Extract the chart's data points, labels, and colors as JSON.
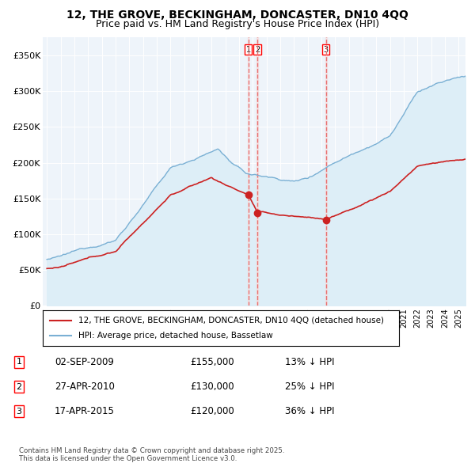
{
  "title": "12, THE GROVE, BECKINGHAM, DONCASTER, DN10 4QQ",
  "subtitle": "Price paid vs. HM Land Registry's House Price Index (HPI)",
  "title_fontsize": 10,
  "subtitle_fontsize": 9,
  "ylabel_ticks": [
    "£0",
    "£50K",
    "£100K",
    "£150K",
    "£200K",
    "£250K",
    "£300K",
    "£350K"
  ],
  "ytick_values": [
    0,
    50000,
    100000,
    150000,
    200000,
    250000,
    300000,
    350000
  ],
  "ylim": [
    0,
    375000
  ],
  "xlim_start": 1994.7,
  "xlim_end": 2025.5,
  "hpi_color": "#7ab0d4",
  "hpi_fill_color": "#ddeef7",
  "price_color": "#cc2222",
  "vline_color": "#e87070",
  "vline_fill_color": "#f5dddd",
  "legend_labels": [
    "12, THE GROVE, BECKINGHAM, DONCASTER, DN10 4QQ (detached house)",
    "HPI: Average price, detached house, Bassetlaw"
  ],
  "transactions": [
    {
      "num": 1,
      "date": "02-SEP-2009",
      "price": 155000,
      "price_str": "£155,000",
      "pct": "13%",
      "dir": "↓",
      "year_x": 2009.67,
      "marker_y": 155000
    },
    {
      "num": 2,
      "date": "27-APR-2010",
      "price": 130000,
      "price_str": "£130,000",
      "pct": "25%",
      "dir": "↓",
      "year_x": 2010.33,
      "marker_y": 130000
    },
    {
      "num": 3,
      "date": "17-APR-2015",
      "price": 120000,
      "price_str": "£120,000",
      "pct": "36%",
      "dir": "↓",
      "year_x": 2015.33,
      "marker_y": 120000
    }
  ],
  "footnote": "Contains HM Land Registry data © Crown copyright and database right 2025.\nThis data is licensed under the Open Government Licence v3.0.",
  "background_color": "#ffffff",
  "plot_bg_color": "#eef4fa",
  "grid_color": "#ffffff"
}
